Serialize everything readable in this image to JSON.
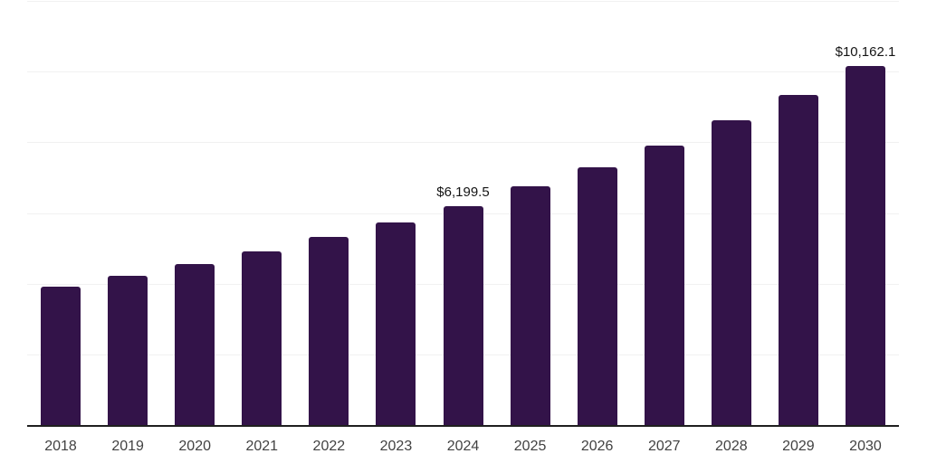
{
  "chart_data": {
    "type": "bar",
    "title": "",
    "xlabel": "",
    "ylabel": "",
    "categories": [
      "2018",
      "2019",
      "2020",
      "2021",
      "2022",
      "2023",
      "2024",
      "2025",
      "2026",
      "2027",
      "2028",
      "2029",
      "2030"
    ],
    "values": [
      3920,
      4210,
      4550,
      4905,
      5310,
      5730,
      6199.5,
      6765,
      7285,
      7910,
      8615,
      9350,
      10162.1
    ],
    "data_labels": [
      "",
      "",
      "",
      "",
      "",
      "",
      "$6,199.5",
      "",
      "",
      "",
      "",
      "",
      "$10,162.1"
    ],
    "ylim": [
      0,
      12000
    ],
    "gridline_step": 2000,
    "grid": true,
    "legend": "none",
    "bar_color": "#331349",
    "colors": {
      "bar": "#331349",
      "gridline": "#f1f1f1",
      "axis_line": "#1f1f1f",
      "tick_label": "#424242",
      "data_label": "#141414",
      "background": "#ffffff"
    }
  }
}
